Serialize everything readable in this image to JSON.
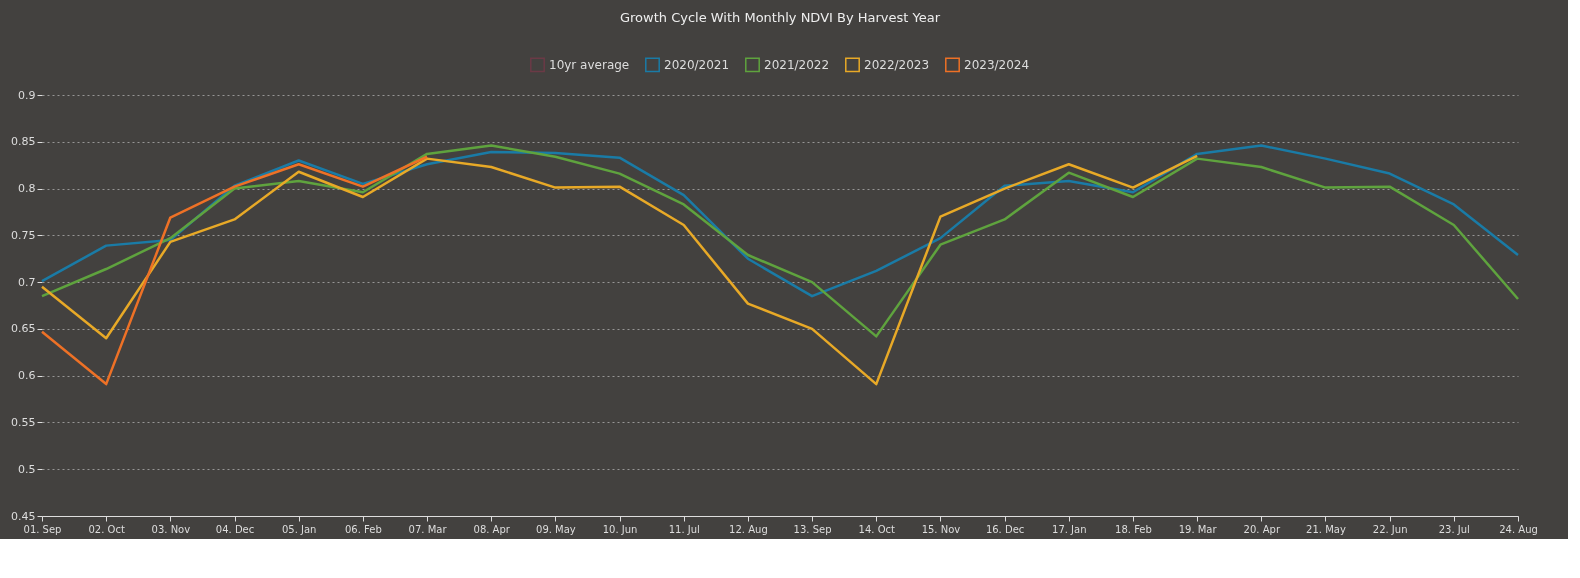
{
  "chart_data": {
    "type": "line",
    "title": "Growth Cycle With Monthly NDVI By Harvest Year",
    "categories": [
      "01. Sep",
      "02. Oct",
      "03. Nov",
      "04. Dec",
      "05. Jan",
      "06. Feb",
      "07. Mar",
      "08. Apr",
      "09. May",
      "10. Jun",
      "11. Jul",
      "12. Aug",
      "13. Sep",
      "14. Oct",
      "15. Nov",
      "16. Dec",
      "17. Jan",
      "18. Feb",
      "19. Mar",
      "20. Apr",
      "21. May",
      "22. Jun",
      "23. Jul",
      "24. Aug"
    ],
    "series": [
      {
        "name": "10yr average",
        "color": "#6b3a46",
        "values": [
          null,
          null,
          null,
          null,
          null,
          null,
          null,
          null,
          null,
          null,
          null,
          null,
          null,
          null,
          null,
          null,
          null,
          null,
          null,
          null,
          null,
          null,
          null,
          null
        ]
      },
      {
        "name": "2020/2021",
        "color": "#1a7ba6",
        "values": [
          0.701,
          0.739,
          0.745,
          0.803,
          0.83,
          0.805,
          0.826,
          0.839,
          0.838,
          0.833,
          0.793,
          0.725,
          0.685,
          0.712,
          0.747,
          0.803,
          0.808,
          0.796,
          0.837,
          0.846,
          0.832,
          0.816,
          0.783,
          0.729
        ]
      },
      {
        "name": "2021/2022",
        "color": "#5fa33e",
        "values": [
          0.685,
          0.714,
          0.747,
          0.8,
          0.808,
          0.796,
          0.837,
          0.846,
          0.834,
          0.816,
          0.783,
          0.729,
          0.7,
          0.642,
          0.74,
          0.767,
          0.817,
          0.791,
          0.832,
          0.823,
          0.801,
          0.802,
          0.761,
          0.682
        ]
      },
      {
        "name": "2022/2023",
        "color": "#e8a927",
        "values": [
          0.695,
          0.64,
          0.743,
          0.767,
          0.818,
          0.791,
          0.832,
          0.823,
          0.801,
          0.802,
          0.761,
          0.677,
          0.65,
          0.591,
          0.77,
          0.8,
          0.826,
          0.801,
          0.835,
          null,
          null,
          null,
          null,
          null
        ]
      },
      {
        "name": "2023/2024",
        "color": "#ee7126",
        "values": [
          0.647,
          0.591,
          0.769,
          0.802,
          0.826,
          0.802,
          0.834,
          null,
          null,
          null,
          null,
          null,
          null,
          null,
          null,
          null,
          null,
          null,
          null,
          null,
          null,
          null,
          null,
          null
        ]
      }
    ],
    "ylim": [
      0.45,
      0.9
    ],
    "yticks": [
      0.45,
      0.5,
      0.55,
      0.6,
      0.65,
      0.7,
      0.75,
      0.8,
      0.85,
      0.9
    ],
    "grid": "y",
    "legend": "top",
    "marker": "none",
    "line_style": "solid"
  }
}
